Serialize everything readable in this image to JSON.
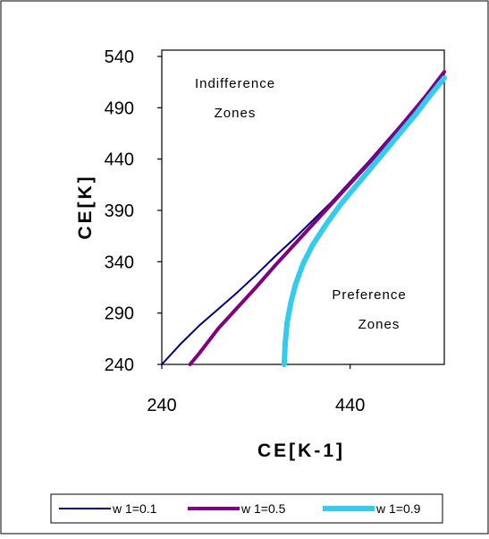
{
  "chart_data": {
    "type": "line",
    "title": "",
    "xlabel": "CE[K-1]",
    "ylabel": "CE[K]",
    "xlim": [
      240,
      540
    ],
    "ylim": [
      240,
      540
    ],
    "xticks": [
      240,
      440
    ],
    "yticks": [
      240,
      290,
      340,
      390,
      440,
      490,
      540
    ],
    "grid": false,
    "legend_position": "bottom",
    "annotations": [
      {
        "lines": [
          "Indifference",
          "Zones"
        ],
        "x": 315,
        "y": 510
      },
      {
        "lines": [
          "Preference",
          "Zones"
        ],
        "x": 475,
        "y": 305
      }
    ],
    "series": [
      {
        "name": "w 1=0.1",
        "color": "#000080",
        "width": 2,
        "x": [
          240,
          260,
          280,
          300,
          320,
          340,
          360,
          380,
          400,
          420,
          440,
          460,
          480,
          500,
          520,
          540
        ],
        "y": [
          240,
          260,
          278,
          294,
          310,
          327,
          345,
          362,
          380,
          398,
          418,
          438,
          459,
          480,
          502,
          525
        ]
      },
      {
        "name": "w 1=0.5",
        "color": "#800080",
        "width": 4,
        "x": [
          270,
          280,
          300,
          320,
          340,
          360,
          380,
          400,
          420,
          440,
          460,
          480,
          500,
          520,
          540
        ],
        "y": [
          240,
          251,
          275,
          295,
          315,
          336,
          356,
          376,
          396,
          416,
          436,
          457,
          479,
          501,
          525
        ]
      },
      {
        "name": "w 1=0.9",
        "color": "#33CCEE",
        "width": 6,
        "x": [
          370,
          371,
          373,
          377,
          382,
          390,
          400,
          415,
          430,
          450,
          470,
          490,
          510,
          525,
          540
        ],
        "y": [
          240,
          260,
          280,
          300,
          318,
          338,
          356,
          377,
          396,
          418,
          440,
          462,
          484,
          502,
          519
        ]
      }
    ]
  }
}
